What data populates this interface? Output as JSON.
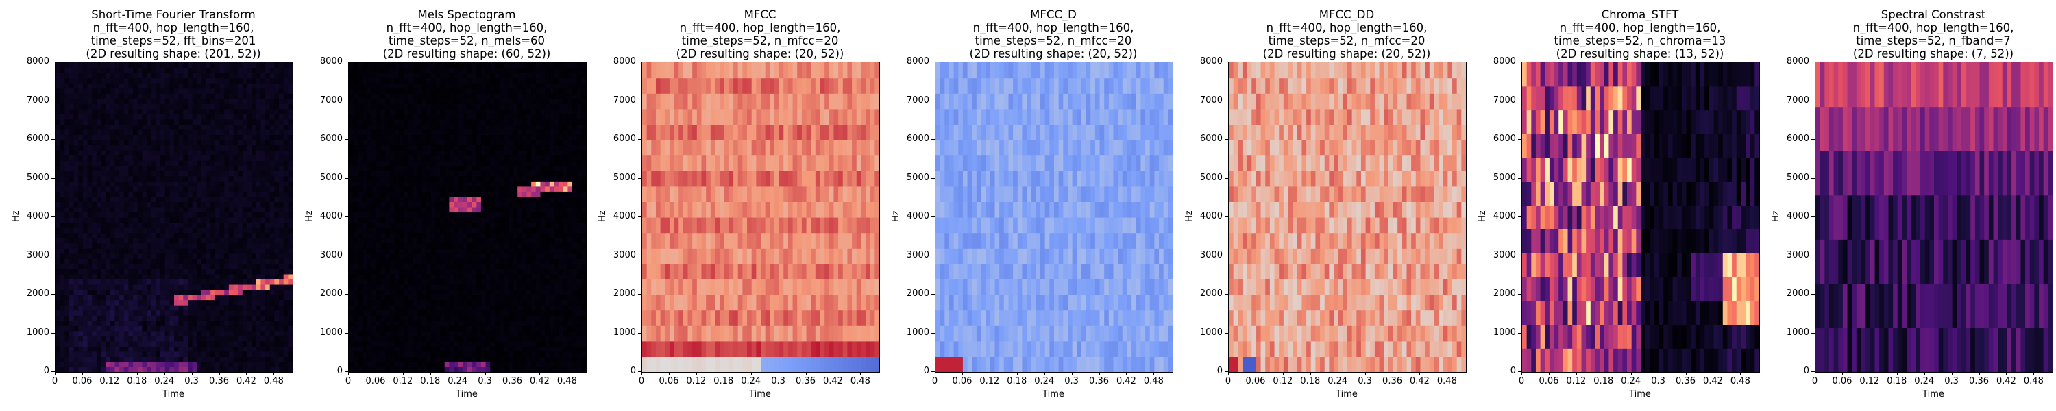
{
  "figure": {
    "panels": [
      {
        "title_lines": [
          "Short-Time Fourier Transform",
          "n_fft=400, hop_length=160,",
          "time_steps=52, fft_bins=201",
          "(2D resulting shape: (201, 52))"
        ],
        "xlabel": "Time",
        "ylabel": "Hz"
      },
      {
        "title_lines": [
          "Mels Spectogram",
          "n_fft=400, hop_length=160,",
          "time_steps=52, n_mels=60",
          "(2D resulting shape: (60, 52))"
        ],
        "xlabel": "Time",
        "ylabel": "Hz"
      },
      {
        "title_lines": [
          "MFCC",
          "n_fft=400, hop_length=160,",
          "time_steps=52, n_mfcc=20",
          "(2D resulting shape: (20, 52))"
        ],
        "xlabel": "Time",
        "ylabel": "Hz"
      },
      {
        "title_lines": [
          "MFCC_D",
          "n_fft=400, hop_length=160,",
          "time_steps=52, n_mfcc=20",
          "(2D resulting shape: (20, 52))"
        ],
        "xlabel": "Time",
        "ylabel": "Hz"
      },
      {
        "title_lines": [
          "MFCC_DD",
          "n_fft=400, hop_length=160,",
          "time_steps=52, n_mfcc=20",
          "(2D resulting shape: (20, 52))"
        ],
        "xlabel": "Time",
        "ylabel": "Hz"
      },
      {
        "title_lines": [
          "Chroma_STFT",
          "n_fft=400, hop_length=160,",
          "time_steps=52, n_chroma=13",
          "(2D resulting shape: (13, 52))"
        ],
        "xlabel": "Time",
        "ylabel": "Hz"
      },
      {
        "title_lines": [
          "Spectral Constrast",
          "n_fft=400, hop_length=160,",
          "time_steps=52, n_fband=7",
          "(2D resulting shape: (7, 52))"
        ],
        "xlabel": "Time",
        "ylabel": "Hz"
      }
    ]
  },
  "chart_data": [
    {
      "type": "heatmap",
      "title": "Short-Time Fourier Transform",
      "rows": 201,
      "cols": 52,
      "colormap": "magma",
      "xlabel": "Time",
      "ylabel": "Hz",
      "xlim": [
        0,
        0.52
      ],
      "ylim": [
        0,
        8000
      ],
      "x_ticks": [
        "0",
        "0.06",
        "0.12",
        "0.18",
        "0.24",
        "0.3",
        "0.36",
        "0.42",
        "0.48"
      ],
      "y_ticks": [
        "0",
        "1000",
        "2000",
        "3000",
        "4000",
        "5000",
        "6000",
        "7000",
        "8000"
      ],
      "features": [
        {
          "desc": "rising energy band",
          "from": [
            0.28,
            1900
          ],
          "to": [
            0.52,
            2400
          ]
        },
        {
          "desc": "low energy band",
          "from": [
            0.12,
            100
          ],
          "to": [
            0.3,
            150
          ]
        }
      ]
    },
    {
      "type": "heatmap",
      "title": "Mels Spectogram",
      "rows": 60,
      "cols": 52,
      "colormap": "magma",
      "xlabel": "Time",
      "ylabel": "Hz",
      "xlim": [
        0,
        0.52
      ],
      "ylim": [
        0,
        8000
      ],
      "x_ticks": [
        "0",
        "0.06",
        "0.12",
        "0.18",
        "0.24",
        "0.3",
        "0.36",
        "0.42",
        "0.48"
      ],
      "y_ticks": [
        "0",
        "1000",
        "2000",
        "3000",
        "4000",
        "5000",
        "6000",
        "7000",
        "8000"
      ],
      "features": [
        {
          "desc": "bright spots",
          "from": [
            0.26,
            4300
          ],
          "to": [
            0.5,
            4900
          ]
        },
        {
          "desc": "low band",
          "from": [
            0.2,
            200
          ],
          "to": [
            0.3,
            300
          ]
        }
      ]
    },
    {
      "type": "heatmap",
      "title": "MFCC",
      "rows": 20,
      "cols": 52,
      "colormap": "coolwarm",
      "xlabel": "Time",
      "ylabel": "Hz",
      "xlim": [
        0,
        0.52
      ],
      "ylim": [
        0,
        8000
      ],
      "x_ticks": [
        "0",
        "0.06",
        "0.12",
        "0.18",
        "0.24",
        "0.3",
        "0.36",
        "0.42",
        "0.48"
      ],
      "y_ticks": [
        "0",
        "1000",
        "2000",
        "3000",
        "4000",
        "5000",
        "6000",
        "7000",
        "8000"
      ]
    },
    {
      "type": "heatmap",
      "title": "MFCC_D",
      "rows": 20,
      "cols": 52,
      "colormap": "coolwarm",
      "xlabel": "Time",
      "ylabel": "Hz",
      "xlim": [
        0,
        0.52
      ],
      "ylim": [
        0,
        8000
      ],
      "x_ticks": [
        "0",
        "0.06",
        "0.12",
        "0.18",
        "0.24",
        "0.3",
        "0.36",
        "0.42",
        "0.48"
      ],
      "y_ticks": [
        "0",
        "1000",
        "2000",
        "3000",
        "4000",
        "5000",
        "6000",
        "7000",
        "8000"
      ]
    },
    {
      "type": "heatmap",
      "title": "MFCC_DD",
      "rows": 20,
      "cols": 52,
      "colormap": "coolwarm",
      "xlabel": "Time",
      "ylabel": "Hz",
      "xlim": [
        0,
        0.52
      ],
      "ylim": [
        0,
        8000
      ],
      "x_ticks": [
        "0",
        "0.06",
        "0.12",
        "0.18",
        "0.24",
        "0.3",
        "0.36",
        "0.42",
        "0.48"
      ],
      "y_ticks": [
        "0",
        "1000",
        "2000",
        "3000",
        "4000",
        "5000",
        "6000",
        "7000",
        "8000"
      ]
    },
    {
      "type": "heatmap",
      "title": "Chroma_STFT",
      "rows": 13,
      "cols": 52,
      "colormap": "magma",
      "xlabel": "Time",
      "ylabel": "Hz",
      "xlim": [
        0,
        0.52
      ],
      "ylim": [
        0,
        8000
      ],
      "x_ticks": [
        "0",
        "0.06",
        "0.12",
        "0.18",
        "0.24",
        "0.3",
        "0.36",
        "0.42",
        "0.48"
      ],
      "y_ticks": [
        "0",
        "1000",
        "2000",
        "3000",
        "4000",
        "5000",
        "6000",
        "7000",
        "8000"
      ]
    },
    {
      "type": "heatmap",
      "title": "Spectral Constrast",
      "rows": 7,
      "cols": 52,
      "colormap": "magma",
      "xlabel": "Time",
      "ylabel": "Hz",
      "xlim": [
        0,
        0.52
      ],
      "ylim": [
        0,
        8000
      ],
      "x_ticks": [
        "0",
        "0.06",
        "0.12",
        "0.18",
        "0.24",
        "0.3",
        "0.36",
        "0.42",
        "0.48"
      ],
      "y_ticks": [
        "0",
        "1000",
        "2000",
        "3000",
        "4000",
        "5000",
        "6000",
        "7000",
        "8000"
      ]
    }
  ]
}
